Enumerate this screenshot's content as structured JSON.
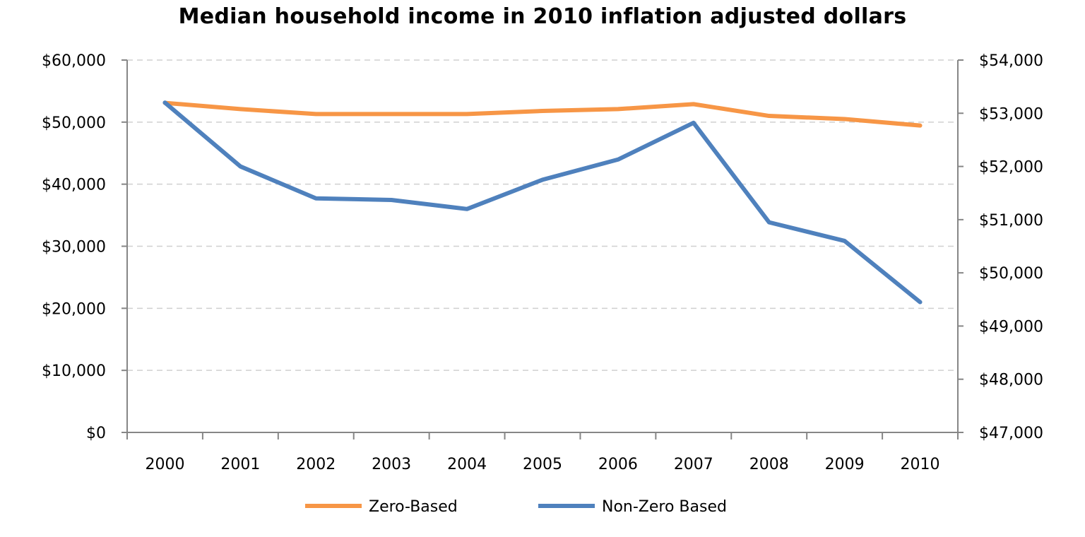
{
  "chart_data": {
    "type": "line",
    "title": "Median household income in 2010 inflation adjusted dollars",
    "categories": [
      "2000",
      "2001",
      "2002",
      "2003",
      "2004",
      "2005",
      "2006",
      "2007",
      "2008",
      "2009",
      "2010"
    ],
    "series": [
      {
        "name": "Zero-Based",
        "axis": "left",
        "color": "#f79646",
        "values": [
          53100,
          52100,
          51300,
          51300,
          51300,
          51800,
          52100,
          52900,
          51000,
          50500,
          49450
        ]
      },
      {
        "name": "Non-Zero Based",
        "axis": "right",
        "color": "#4f81bd",
        "values": [
          53200,
          52000,
          51400,
          51370,
          51200,
          51750,
          52130,
          52820,
          50950,
          50600,
          49450
        ]
      }
    ],
    "y_left": {
      "min": 0,
      "max": 60000,
      "ticks": [
        0,
        10000,
        20000,
        30000,
        40000,
        50000,
        60000
      ],
      "tick_labels": [
        "$0",
        "$10,000",
        "$20,000",
        "$30,000",
        "$40,000",
        "$50,000",
        "$60,000"
      ]
    },
    "y_right": {
      "min": 47000,
      "max": 54000,
      "ticks": [
        47000,
        48000,
        49000,
        50000,
        51000,
        52000,
        53000,
        54000
      ],
      "tick_labels": [
        "$47,000",
        "$48,000",
        "$49,000",
        "$50,000",
        "$51,000",
        "$52,000",
        "$53,000",
        "$54,000"
      ]
    },
    "grid": true,
    "legend_position": "bottom",
    "xlabel": "",
    "ylabel": ""
  }
}
